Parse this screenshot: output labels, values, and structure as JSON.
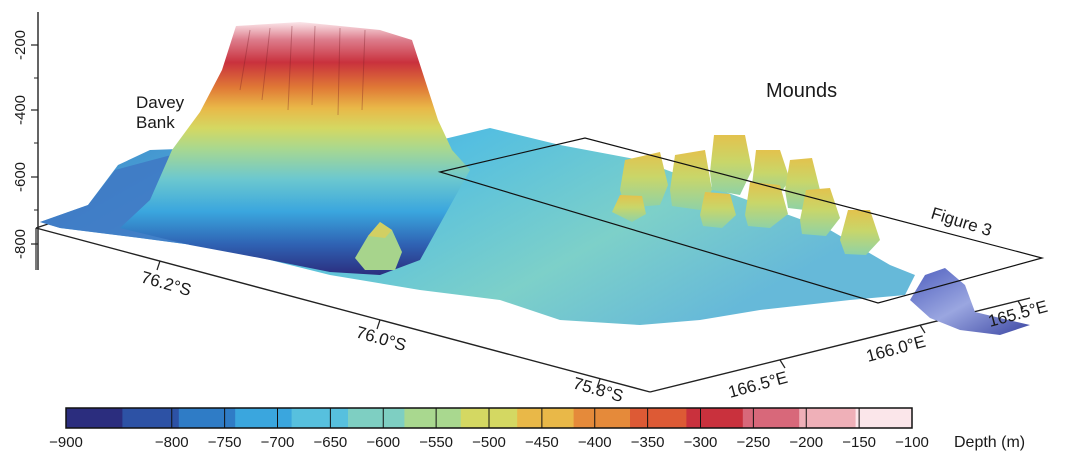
{
  "annotations": {
    "davey_bank_line1": "Davey",
    "davey_bank_line2": "Bank",
    "mounds": "Mounds",
    "figure_box": "Figure 3"
  },
  "axes": {
    "vertical": {
      "ticks": [
        "-200",
        "-400",
        "-600",
        "-800"
      ]
    },
    "latitude": {
      "ticks": [
        "76.2°S",
        "76.0°S",
        "75.8°S"
      ]
    },
    "longitude": {
      "ticks": [
        "166.5°E",
        "166.0°E",
        "165.5°E"
      ]
    }
  },
  "colorbar": {
    "ticks": [
      "-900",
      "-800",
      "-750",
      "-700",
      "-650",
      "-600",
      "-550",
      "-500",
      "-450",
      "-400",
      "-350",
      "-300",
      "-250",
      "-200",
      "-150",
      "-100"
    ],
    "label": "Depth  (m)",
    "colors": [
      "#2b2d7e",
      "#2d52a5",
      "#2f7cc6",
      "#3aa6de",
      "#57c0de",
      "#7ecfc2",
      "#a9d88f",
      "#d4d862",
      "#e9b848",
      "#e58a3a",
      "#dd5a35",
      "#c9313d",
      "#d8687a",
      "#efb0b8",
      "#fbe6ea"
    ]
  }
}
